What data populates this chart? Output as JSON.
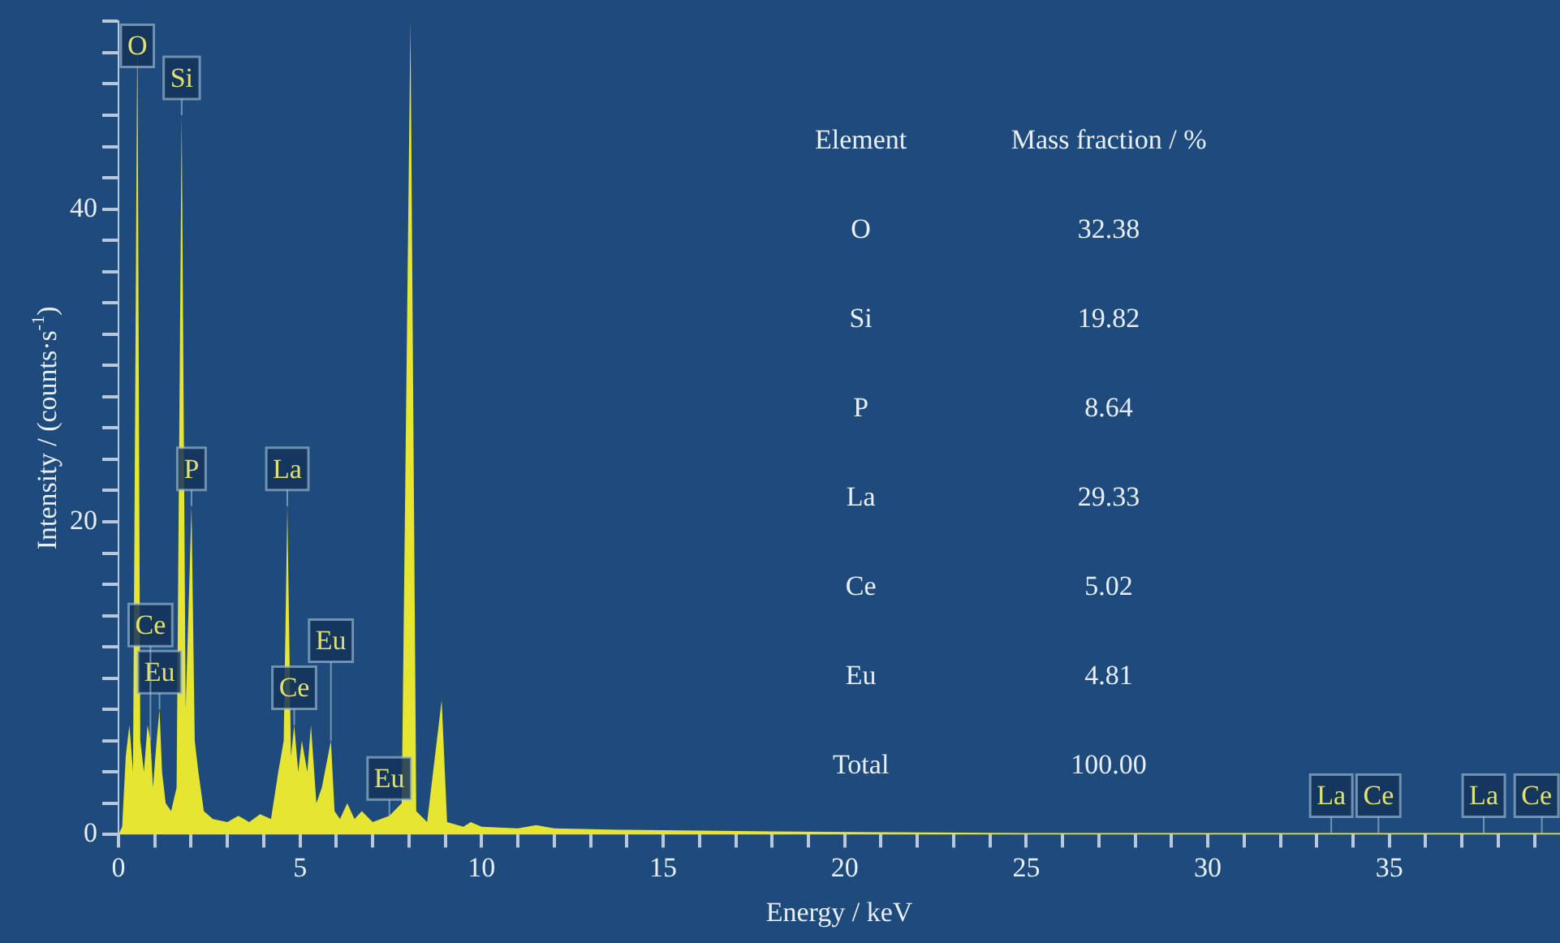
{
  "chart_data": {
    "type": "area",
    "xlabel": "Energy / keV",
    "ylabel": "Intensity / (counts·s$^{-1}$)",
    "x": [
      0,
      0.1,
      0.2,
      0.3,
      0.4,
      0.52,
      0.6,
      0.7,
      0.8,
      0.88,
      0.95,
      1.05,
      1.13,
      1.2,
      1.3,
      1.45,
      1.6,
      1.74,
      1.85,
      2.01,
      2.1,
      2.2,
      2.35,
      2.6,
      3.0,
      3.3,
      3.6,
      3.9,
      4.2,
      4.4,
      4.55,
      4.65,
      4.75,
      4.84,
      4.95,
      5.05,
      5.2,
      5.3,
      5.45,
      5.6,
      5.85,
      5.95,
      6.1,
      6.3,
      6.5,
      6.7,
      7.0,
      7.46,
      7.8,
      8.04,
      8.2,
      8.5,
      8.9,
      9.05,
      9.5,
      9.7,
      10,
      11,
      11.5,
      12,
      14,
      18,
      25,
      30,
      33.4,
      34.7,
      37.6,
      39.2,
      39.7
    ],
    "series": [
      {
        "color": "#e6e632",
        "values": [
          0,
          0.5,
          5,
          7,
          4,
          52,
          6,
          4,
          7,
          6,
          3,
          6,
          8,
          4,
          2,
          1.5,
          3,
          46,
          8,
          21,
          6,
          4,
          1.5,
          1,
          0.8,
          1.2,
          0.8,
          1.3,
          1,
          4,
          6,
          21,
          5,
          7,
          4,
          6,
          4,
          7,
          2,
          3,
          6,
          1.5,
          1,
          2,
          1,
          1.5,
          0.8,
          1.2,
          2,
          52,
          1.5,
          0.8,
          8.6,
          0.8,
          0.5,
          0.8,
          0.5,
          0.4,
          0.6,
          0.4,
          0.3,
          0.2,
          0.1,
          0.1,
          0.1,
          0.1,
          0.1,
          0.1,
          0.1
        ]
      }
    ],
    "xlim": [
      0,
      39.7
    ],
    "ylim": [
      0,
      52
    ],
    "xticks": [
      0,
      {
        "value": 1,
        "label": null
      },
      {
        "value": 2,
        "label": null
      },
      {
        "value": 3,
        "label": null
      },
      {
        "value": 4,
        "label": null
      },
      5,
      {
        "value": 6,
        "label": null
      },
      {
        "value": 7,
        "label": null
      },
      {
        "value": 8,
        "label": null
      },
      {
        "value": 9,
        "label": null
      },
      10,
      {
        "value": 11,
        "label": null
      },
      {
        "value": 12,
        "label": null
      },
      {
        "value": 13,
        "label": null
      },
      {
        "value": 14,
        "label": null
      },
      15,
      {
        "value": 16,
        "label": null
      },
      {
        "value": 17,
        "label": null
      },
      {
        "value": 18,
        "label": null
      },
      {
        "value": 19,
        "label": null
      },
      20,
      {
        "value": 21,
        "label": null
      },
      {
        "value": 22,
        "label": null
      },
      {
        "value": 23,
        "label": null
      },
      {
        "value": 24,
        "label": null
      },
      25,
      {
        "value": 26,
        "label": null
      },
      {
        "value": 27,
        "label": null
      },
      {
        "value": 28,
        "label": null
      },
      {
        "value": 29,
        "label": null
      },
      30,
      {
        "value": 31,
        "label": null
      },
      {
        "value": 32,
        "label": null
      },
      {
        "value": 33,
        "label": null
      },
      {
        "value": 34,
        "label": null
      },
      35,
      {
        "value": 36,
        "label": null
      },
      {
        "value": 37,
        "label": null
      },
      {
        "value": 38,
        "label": null
      },
      {
        "value": 39,
        "label": null
      }
    ],
    "yticks": [
      0,
      {
        "value": 2,
        "label": null
      },
      {
        "value": 4,
        "label": null
      },
      {
        "value": 6,
        "label": null
      },
      {
        "value": 8,
        "label": null
      },
      {
        "value": 10,
        "label": null
      },
      {
        "value": 12,
        "label": null
      },
      {
        "value": 14,
        "label": null
      },
      {
        "value": 16,
        "label": null
      },
      {
        "value": 18,
        "label": null
      },
      20,
      {
        "value": 22,
        "label": null
      },
      {
        "value": 24,
        "label": null
      },
      {
        "value": 26,
        "label": null
      },
      {
        "value": 28,
        "label": null
      },
      {
        "value": 30,
        "label": null
      },
      {
        "value": 32,
        "label": null
      },
      {
        "value": 34,
        "label": null
      },
      {
        "value": 36,
        "label": null
      },
      {
        "value": 38,
        "label": null
      },
      40,
      {
        "value": 42,
        "label": null
      },
      {
        "value": 44,
        "label": null
      },
      {
        "value": 46,
        "label": null
      },
      {
        "value": 48,
        "label": null
      },
      {
        "value": 50,
        "label": null
      },
      {
        "value": 52,
        "label": null
      }
    ],
    "grid": false,
    "legend": false,
    "annotations": [
      "Element",
      "Mass fraction / %",
      "O",
      "32.38",
      "Si",
      "19.82",
      "P",
      "8.64",
      "La",
      "29.33",
      "Ce",
      "5.02",
      "Eu",
      "4.81",
      "Total",
      "100.00",
      {
        "text": "O",
        "x": 0.52,
        "y": 52
      },
      {
        "text": "Si",
        "x": 1.74,
        "y": 46
      },
      {
        "text": "P",
        "x": 2.01,
        "y": 21
      },
      {
        "text": "La",
        "x": 4.65,
        "y": 21
      },
      {
        "text": "Eu",
        "x": 1.13,
        "y": 8
      },
      {
        "text": "Ce",
        "x": 0.88,
        "y": 6
      },
      {
        "text": "Ce",
        "x": 4.84,
        "y": 7
      },
      {
        "text": "Eu",
        "x": 5.85,
        "y": 6
      },
      {
        "text": "Eu",
        "x": 7.46,
        "y": 1.2
      },
      {
        "text": "Ce",
        "x": 34.7,
        "y": 0.1
      },
      {
        "text": "La",
        "x": 33.4,
        "y": 0.1
      },
      {
        "text": "La",
        "x": 37.6,
        "y": 0.1
      },
      {
        "text": "Ce",
        "x": 39.2,
        "y": 0.1
      }
    ]
  }
}
